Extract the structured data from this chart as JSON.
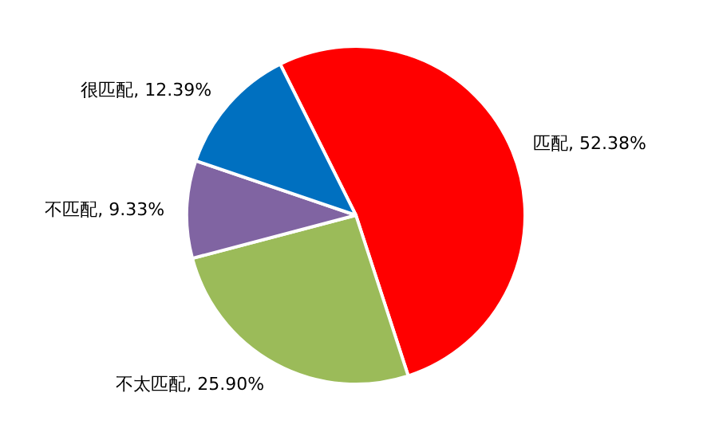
{
  "chart_data": {
    "type": "pie",
    "categories": [
      "匹配",
      "不太匹配",
      "不匹配",
      "很匹配"
    ],
    "values": [
      52.38,
      25.9,
      9.33,
      12.39
    ],
    "colors": [
      "#ff0000",
      "#9bbb59",
      "#8064a2",
      "#0070c0"
    ],
    "value_labels": [
      ", 52.38%",
      ", 25.90%",
      ", 9.33%",
      ", 12.39%"
    ]
  }
}
